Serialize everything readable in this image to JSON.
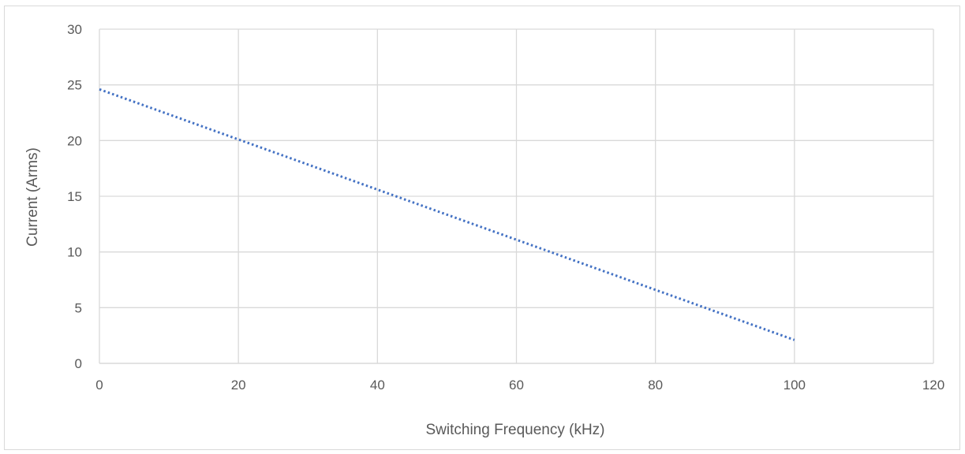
{
  "chart_data": {
    "type": "line",
    "title": "",
    "xlabel": "Switching Frequency (kHz)",
    "ylabel": "Current (Arms)",
    "xlim": [
      0,
      120
    ],
    "ylim": [
      0,
      30
    ],
    "x_ticks": [
      0,
      20,
      40,
      60,
      80,
      100,
      120
    ],
    "y_ticks": [
      0,
      5,
      10,
      15,
      20,
      25,
      30
    ],
    "grid": true,
    "series": [
      {
        "line_style": "dotted",
        "color": "#4472c4",
        "x": [
          0,
          20,
          40,
          60,
          80,
          100
        ],
        "y": [
          24.6,
          20.1,
          15.6,
          11.1,
          6.6,
          2.1
        ]
      }
    ]
  }
}
